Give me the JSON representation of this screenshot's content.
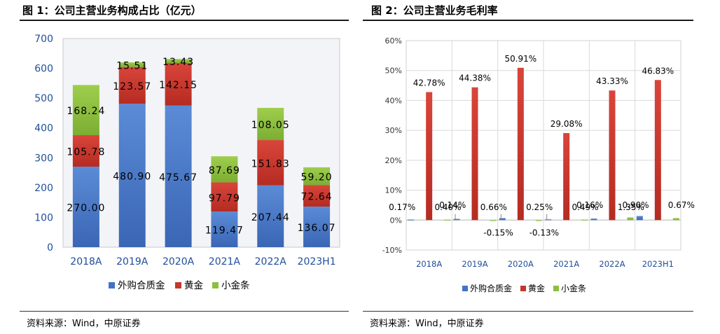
{
  "colors": {
    "ext": "#4472c4",
    "gold": "#c0392b",
    "bar": "#8cbf3f",
    "grid": "#d9d9d9",
    "plotbg": "#f5f5f5"
  },
  "left": {
    "title": "图 1：公司主营业务构成占比（亿元）",
    "source": "资料来源：Wind，中原证券"
  },
  "right": {
    "title": "图 2：公司主营业务毛利率",
    "source": "资料来源：Wind，中原证券"
  },
  "chart_data": [
    {
      "type": "bar",
      "stacked": true,
      "title": "公司主营业务构成占比（亿元）",
      "categories": [
        "2018A",
        "2019A",
        "2020A",
        "2021A",
        "2022A",
        "2023H1"
      ],
      "series": [
        {
          "name": "外购合质金",
          "values": [
            270.0,
            480.9,
            475.67,
            119.47,
            207.44,
            136.07
          ],
          "labels": [
            "270.00",
            "480.90",
            "475.67",
            "119.47",
            "207.44",
            "136.07"
          ]
        },
        {
          "name": "黄金",
          "values": [
            105.78,
            123.57,
            142.15,
            97.79,
            151.83,
            72.64
          ],
          "labels": [
            "105.78",
            "123.57",
            "142.15",
            "97.79",
            "151.83",
            "72.64"
          ]
        },
        {
          "name": "小金条",
          "values": [
            168.24,
            15.51,
            13.43,
            87.69,
            108.05,
            59.2
          ],
          "labels": [
            "168.24",
            "15.51",
            "13.43",
            "87.69",
            "108.05",
            "59.20"
          ]
        }
      ],
      "yticks": [
        "0",
        "100",
        "200",
        "300",
        "400",
        "500",
        "600",
        "700"
      ],
      "ylim": [
        0,
        700
      ],
      "legend": "bottom"
    },
    {
      "type": "bar",
      "stacked": false,
      "title": "公司主营业务毛利率",
      "categories": [
        "2018A",
        "2019A",
        "2020A",
        "2021A",
        "2022A",
        "2023H1"
      ],
      "series": [
        {
          "name": "外购合质金",
          "values": [
            0.17,
            0.4,
            0.66,
            0.25,
            0.49,
            1.35
          ],
          "labels": [
            "0.17%",
            "0.40%",
            "0.66%",
            "0.25%",
            "0.49%",
            "1.35%"
          ]
        },
        {
          "name": "黄金",
          "values": [
            42.78,
            44.38,
            50.91,
            29.08,
            43.33,
            46.83
          ],
          "labels": [
            "42.78%",
            "44.38%",
            "50.91%",
            "29.08%",
            "43.33%",
            "46.83%"
          ]
        },
        {
          "name": "小金条",
          "values": [
            0.14,
            -0.15,
            -0.13,
            0.16,
            0.9,
            0.67
          ],
          "labels": [
            "0.14%",
            "-0.15%",
            "-0.13%",
            "0.16%",
            "0.90%",
            "0.67%"
          ]
        }
      ],
      "yticks": [
        "-10%",
        "0%",
        "10%",
        "20%",
        "30%",
        "40%",
        "50%",
        "60%"
      ],
      "ylim": [
        -10,
        60
      ],
      "legend": "bottom"
    }
  ]
}
